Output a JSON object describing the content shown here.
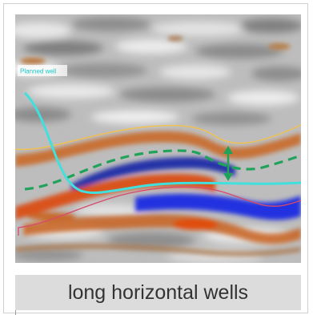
{
  "figure": {
    "well_label": "Planned well",
    "caption": "long horizontal wells"
  },
  "colors": {
    "frame_border": "#cfcfcf",
    "caption_bg": "#dcdcdc",
    "caption_text": "#333333",
    "trajectory": "#3fe0de",
    "dashed_horizon": "#1fa35a",
    "arrow": "#1fa35a",
    "top_horizon": "#f2c14e",
    "bottom_horizon": "#d84a6a",
    "reflector_warm": "#d9621a",
    "reflector_cool": "#1f2fd0",
    "background_gray": "#b9b9b9"
  }
}
